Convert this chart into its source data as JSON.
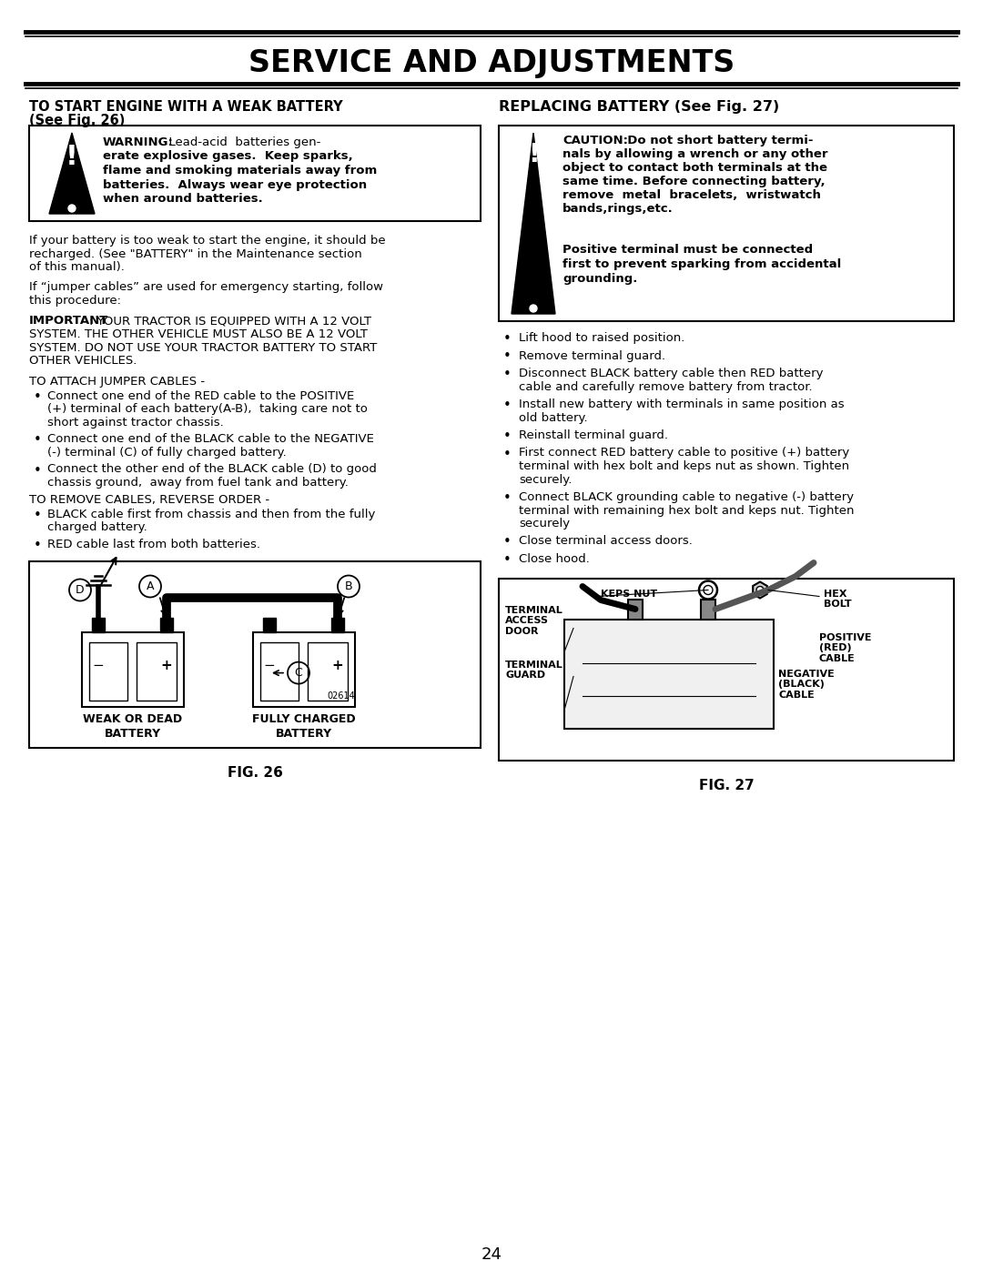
{
  "title": "SERVICE AND ADJUSTMENTS",
  "page_number": "24",
  "left_heading1": "TO START ENGINE WITH A WEAK BATTERY",
  "left_heading2": "(See Fig. 26)",
  "right_heading": "REPLACING BATTERY (See Fig. 27)",
  "warning_bold": "WARNING:",
  "warning_rest_lines": [
    "  Lead-acid  batteries gen-",
    "erate explosive gases.  Keep sparks,",
    "flame and smoking materials away from",
    "batteries.  Always wear eye protection",
    "when around batteries."
  ],
  "caution_bold": "CAUTION:",
  "caution_rest_lines": [
    "  Do not short battery termi-",
    "nals by allowing a wrench or any other",
    "object to contact both terminals at the",
    "same time. Before connecting battery,",
    "remove  metal  bracelets,  wristwatch",
    "bands,rings,etc."
  ],
  "positive_note_lines": [
    "Positive terminal must be connected",
    "first to prevent sparking from accidental",
    "grounding."
  ],
  "para1_lines": [
    "If your battery is too weak to start the engine, it should be",
    "recharged. (See \"BATTERY\" in the Maintenance section",
    "of this manual)."
  ],
  "para2_lines": [
    "If “jumper cables” are used for emergency starting, follow",
    "this procedure:"
  ],
  "important_bold": "IMPORTANT",
  "important_lines": [
    ": YOUR TRACTOR IS EQUIPPED WITH A 12 VOLT",
    "SYSTEM. THE OTHER VEHICLE MUST ALSO BE A 12 VOLT",
    "SYSTEM. DO NOT USE YOUR TRACTOR BATTERY TO START",
    "OTHER VEHICLES."
  ],
  "attach_heading": "TO ATTACH JUMPER CABLES -",
  "attach_bullets": [
    [
      "Connect one end of the RED cable to the POSITIVE",
      "(+) terminal of each battery(A-B),  taking care not to",
      "short against tractor chassis."
    ],
    [
      "Connect one end of the BLACK cable to the NEGATIVE",
      "(-) terminal (C) of fully charged battery."
    ],
    [
      "Connect the other end of the BLACK cable (D) to good",
      "chassis ground,  away from fuel tank and battery."
    ]
  ],
  "remove_heading": "TO REMOVE CABLES, REVERSE ORDER -",
  "remove_bullets": [
    [
      "BLACK cable first from chassis and then from the fully",
      "charged battery."
    ],
    [
      "RED cable last from both batteries."
    ]
  ],
  "fig26_caption": "FIG. 26",
  "fig27_caption": "FIG. 27",
  "weak_label": "WEAK OR DEAD\nBATTERY",
  "charged_label": "FULLY CHARGED\nBATTERY",
  "replace_bullets": [
    [
      "Lift hood to raised position."
    ],
    [
      "Remove terminal guard."
    ],
    [
      "Disconnect BLACK battery cable then RED battery",
      "cable and carefully remove battery from tractor."
    ],
    [
      "Install new battery with terminals in same position as",
      "old battery."
    ],
    [
      "Reinstall terminal guard."
    ],
    [
      "First connect RED battery cable to positive (+) battery",
      "terminal with hex bolt and keps nut as shown. Tighten",
      "securely."
    ],
    [
      "Connect BLACK grounding cable to negative (-) battery",
      "terminal with remaining hex bolt and keps nut. Tighten",
      "securely"
    ],
    [
      "Close terminal access doors."
    ],
    [
      "Close hood."
    ]
  ],
  "lbl_keps_nut": "KEPS NUT",
  "lbl_hex_bolt": "HEX\nBOLT",
  "lbl_terminal_access": "TERMINAL\nACCESS\nDOOR",
  "lbl_positive_cable": "POSITIVE\n(RED)\nCABLE",
  "lbl_terminal_guard": "TERMINAL\nGUARD",
  "lbl_negative_cable": "NEGATIVE\n(BLACK)\nCABLE"
}
